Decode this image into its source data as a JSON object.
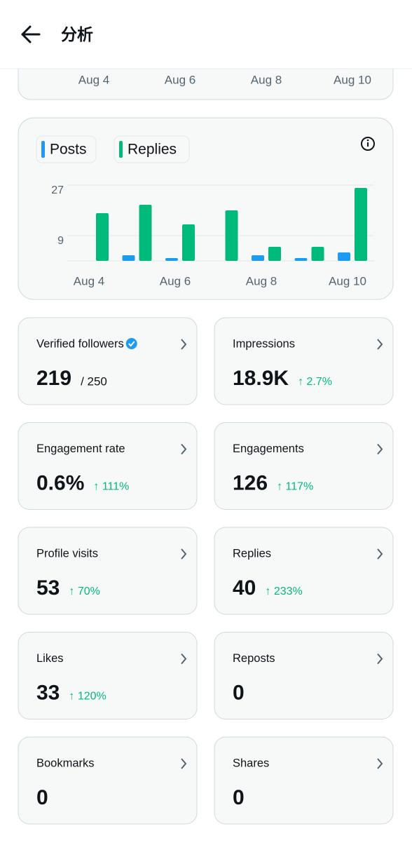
{
  "header": {
    "title": "分析"
  },
  "top_card": {
    "labels": [
      "Aug 4",
      "Aug 6",
      "Aug 8",
      "Aug 10"
    ]
  },
  "chart_data": {
    "type": "bar",
    "categories": [
      "Aug 4",
      null,
      "Aug 6",
      null,
      "Aug 8",
      null,
      "Aug 10"
    ],
    "series": [
      {
        "name": "Posts",
        "color": "#1d9bf0",
        "values": [
          0,
          2,
          1,
          0,
          2,
          1,
          3
        ]
      },
      {
        "name": "Replies",
        "color": "#00ba7c",
        "values": [
          17,
          20,
          13,
          18,
          5,
          5,
          26
        ]
      }
    ],
    "ylim": [
      0,
      27
    ],
    "yticks": [
      9,
      27
    ],
    "grid": true
  },
  "cards": [
    {
      "title": "Verified followers",
      "value": "219",
      "suffix": "/ 250"
    },
    {
      "title": "Impressions",
      "value": "18.9K",
      "change": "↑ 2.7%"
    },
    {
      "title": "Engagement rate",
      "value": "0.6%",
      "change": "↑ 111%"
    },
    {
      "title": "Engagements",
      "value": "126",
      "change": "↑ 117%"
    },
    {
      "title": "Profile visits",
      "value": "53",
      "change": "↑ 70%"
    },
    {
      "title": "Replies",
      "value": "40",
      "change": "↑ 233%"
    },
    {
      "title": "Likes",
      "value": "33",
      "change": "↑ 120%"
    },
    {
      "title": "Reposts",
      "value": "0"
    },
    {
      "title": "Bookmarks",
      "value": "0"
    },
    {
      "title": "Shares",
      "value": "0"
    }
  ]
}
